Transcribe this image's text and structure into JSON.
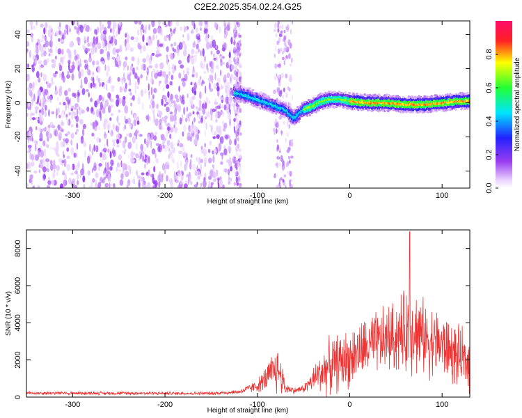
{
  "chart_data": [
    {
      "type": "heatmap",
      "title": "C2E2.2025.354.02.24.G25",
      "xlabel": "Height of straight line (km)",
      "ylabel": "Frequency (Hz)",
      "xlim": [
        -350,
        130
      ],
      "ylim": [
        -50,
        48
      ],
      "xticks": [
        -300,
        -200,
        -100,
        0,
        100
      ],
      "yticks": [
        -40,
        -20,
        0,
        20,
        40
      ],
      "colorbar": {
        "label": "Normalized spectral amplitude",
        "range": [
          0.0,
          1.0
        ],
        "ticks": [
          "0.0",
          "0.2",
          "0.4",
          "0.6",
          "0.8"
        ],
        "colormap": "rainbow-white-violet-blue-cyan-green-yellow-red"
      },
      "features": {
        "noise_region_x": [
          -350,
          -125
        ],
        "gap_region_x": [
          -110,
          -80
        ],
        "tone_path": [
          {
            "x": -125,
            "y": 6
          },
          {
            "x": -110,
            "y": 4
          },
          {
            "x": -100,
            "y": 2
          },
          {
            "x": -90,
            "y": 0
          },
          {
            "x": -80,
            "y": -2
          },
          {
            "x": -70,
            "y": -4
          },
          {
            "x": -60,
            "y": -9
          },
          {
            "x": -50,
            "y": -4
          },
          {
            "x": -40,
            "y": -2
          },
          {
            "x": -30,
            "y": 1
          },
          {
            "x": -20,
            "y": 2
          },
          {
            "x": -10,
            "y": 2
          },
          {
            "x": 0,
            "y": 1
          },
          {
            "x": 20,
            "y": 0
          },
          {
            "x": 40,
            "y": 0
          },
          {
            "x": 60,
            "y": -1
          },
          {
            "x": 80,
            "y": -1
          },
          {
            "x": 100,
            "y": 0
          },
          {
            "x": 120,
            "y": 1
          },
          {
            "x": 130,
            "y": 1
          }
        ]
      },
      "grid": false
    },
    {
      "type": "line",
      "title": "",
      "xlabel": "Height of straight line (km)",
      "ylabel": "SNR (10 * v/v)",
      "xlim": [
        -350,
        130
      ],
      "ylim": [
        0,
        9000
      ],
      "xticks": [
        -300,
        -200,
        -100,
        0,
        100
      ],
      "yticks": [
        0,
        2000,
        4000,
        6000,
        8000
      ],
      "series": [
        {
          "color": "#ee3333",
          "envelope": [
            {
              "x": -350,
              "mean": 220,
              "spread": 120
            },
            {
              "x": -250,
              "mean": 210,
              "spread": 110
            },
            {
              "x": -150,
              "mean": 200,
              "spread": 110
            },
            {
              "x": -120,
              "mean": 280,
              "spread": 150
            },
            {
              "x": -100,
              "mean": 600,
              "spread": 400
            },
            {
              "x": -90,
              "mean": 1000,
              "spread": 900
            },
            {
              "x": -80,
              "mean": 1500,
              "spread": 1600
            },
            {
              "x": -75,
              "mean": 1300,
              "spread": 1500
            },
            {
              "x": -70,
              "mean": 500,
              "spread": 400
            },
            {
              "x": -60,
              "mean": 350,
              "spread": 200
            },
            {
              "x": -50,
              "mean": 450,
              "spread": 250
            },
            {
              "x": -40,
              "mean": 900,
              "spread": 800
            },
            {
              "x": -30,
              "mean": 1400,
              "spread": 1500
            },
            {
              "x": -20,
              "mean": 1700,
              "spread": 1800
            },
            {
              "x": -10,
              "mean": 1900,
              "spread": 1900
            },
            {
              "x": 0,
              "mean": 2100,
              "spread": 1900
            },
            {
              "x": 20,
              "mean": 2700,
              "spread": 2000
            },
            {
              "x": 40,
              "mean": 3100,
              "spread": 2200
            },
            {
              "x": 60,
              "mean": 3500,
              "spread": 2600
            },
            {
              "x": 65,
              "mean": 3900,
              "spread": 3200
            },
            {
              "x": 80,
              "mean": 3200,
              "spread": 2400
            },
            {
              "x": 100,
              "mean": 2800,
              "spread": 2200
            },
            {
              "x": 115,
              "mean": 2200,
              "spread": 2000
            },
            {
              "x": 130,
              "mean": 1800,
              "spread": 1800
            }
          ],
          "peak": {
            "x": 65,
            "y": 8900
          }
        }
      ],
      "grid": false
    }
  ]
}
